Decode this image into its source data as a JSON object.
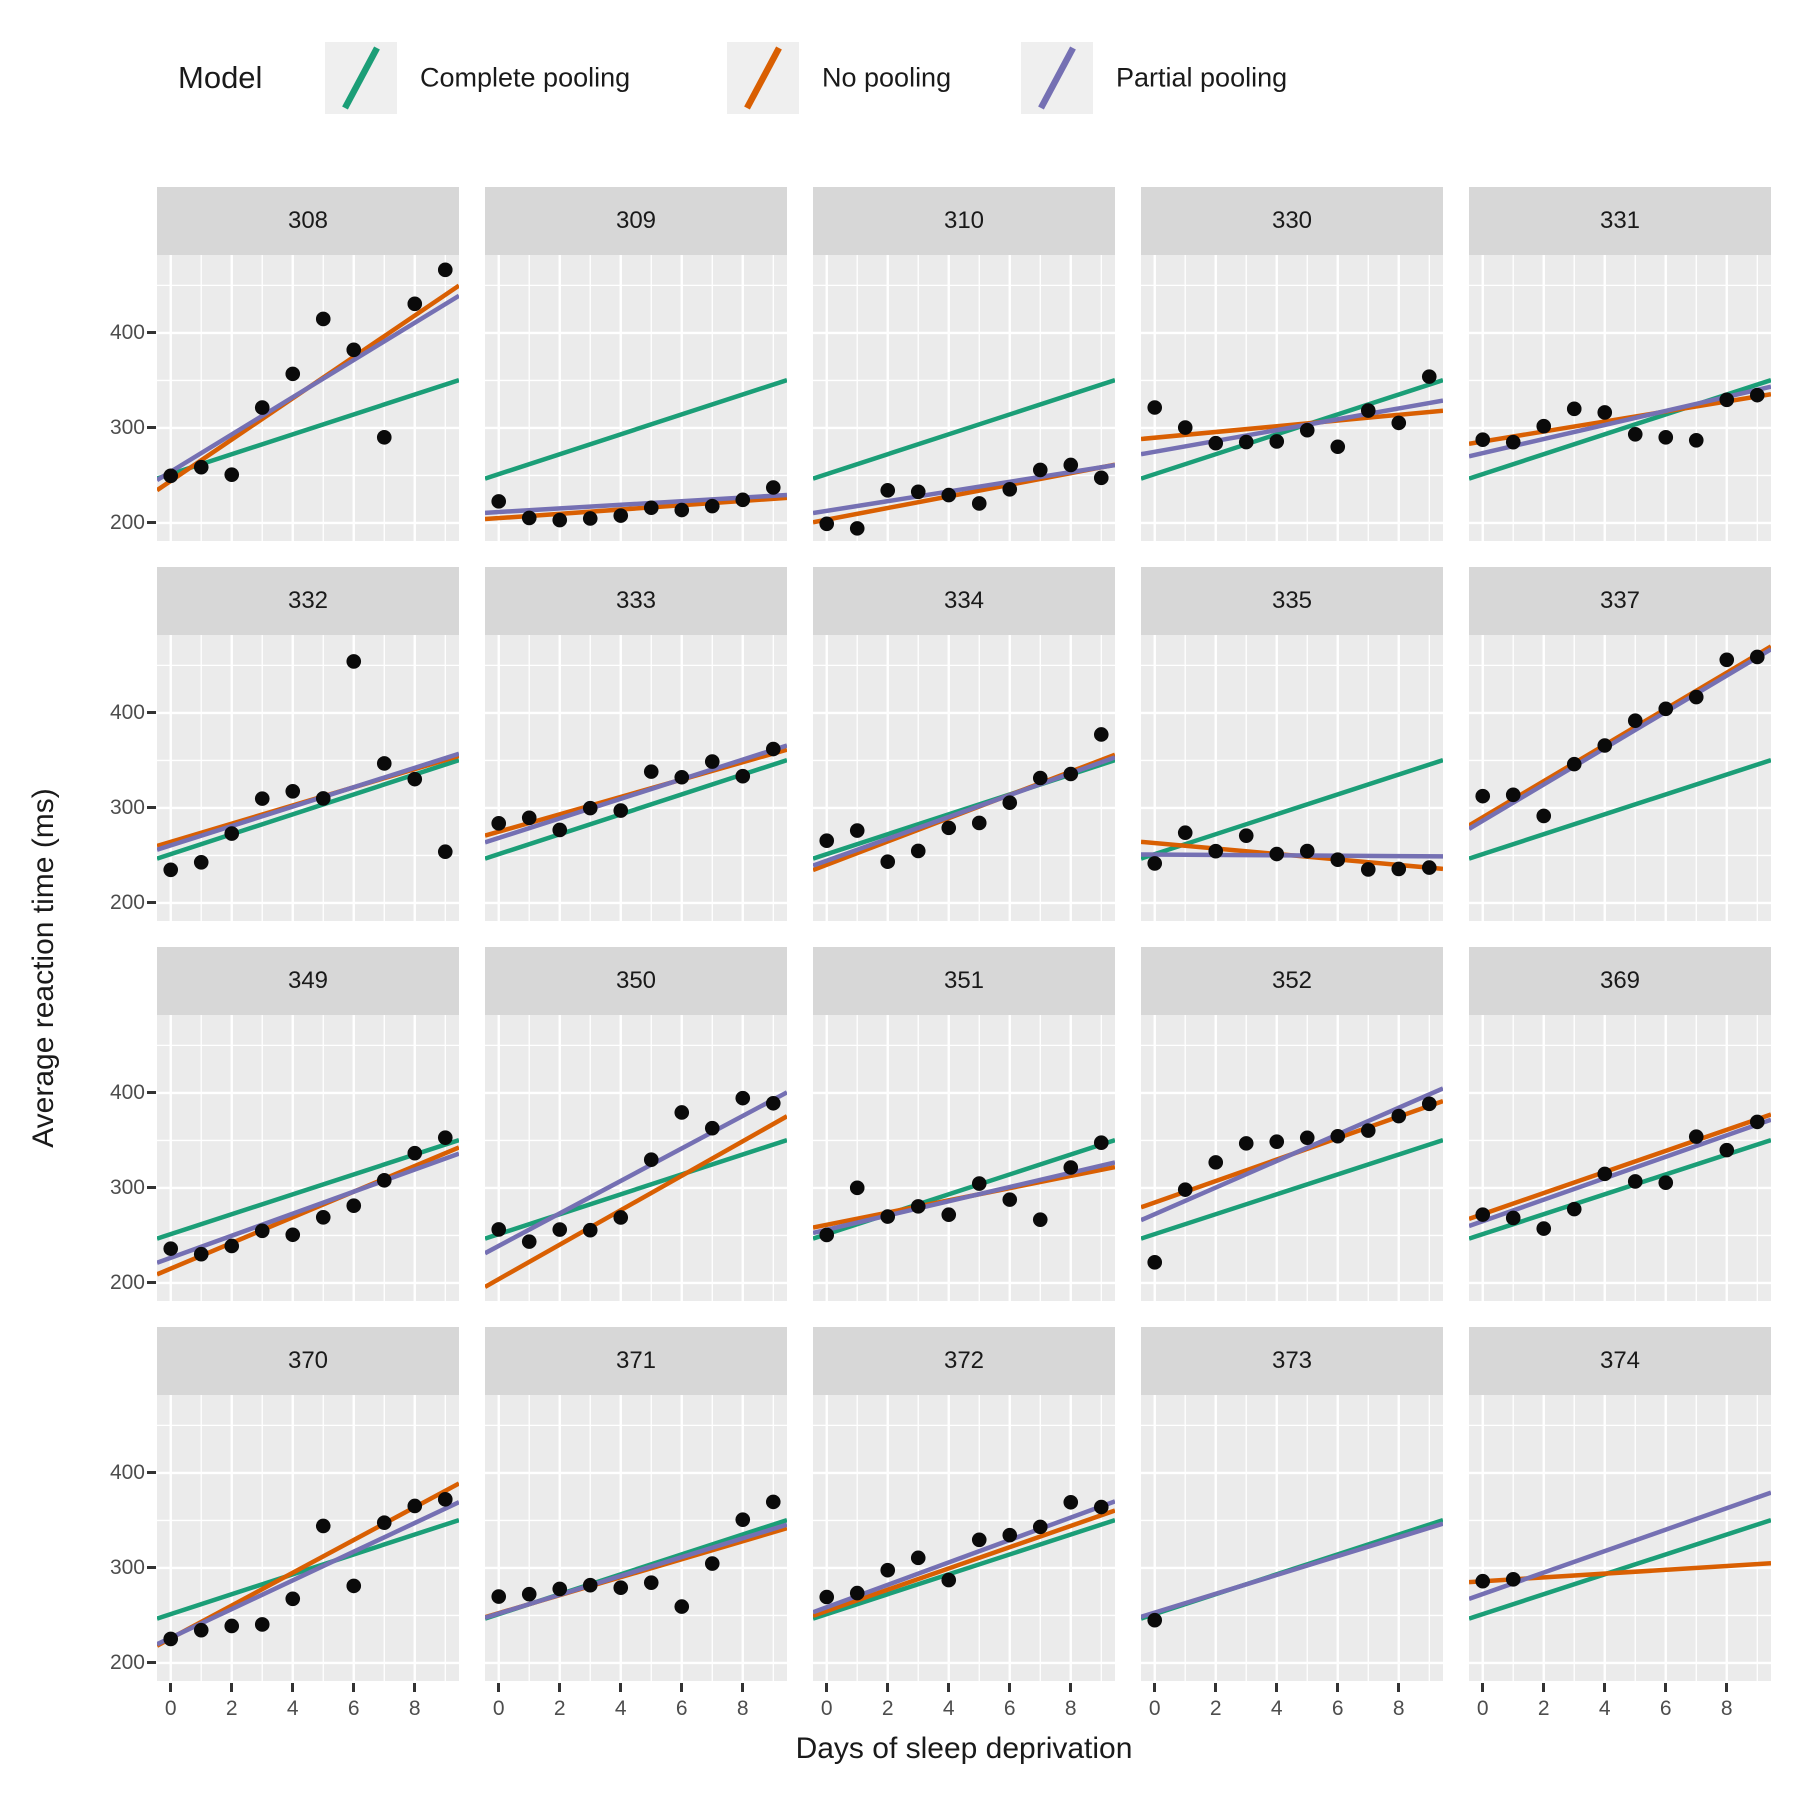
{
  "legend": {
    "title": "Model",
    "items": [
      {
        "key": "complete_pooling",
        "label": "Complete pooling",
        "color": "#1b9e77"
      },
      {
        "key": "no_pooling",
        "label": "No pooling",
        "color": "#d95f02"
      },
      {
        "key": "partial_pooling",
        "label": "Partial pooling",
        "color": "#7570b3"
      }
    ]
  },
  "axes": {
    "x_title": "Days of sleep deprivation",
    "y_title": "Average reaction time (ms)",
    "y_ticks": [
      400,
      300,
      200
    ],
    "y_minor": [
      450,
      350,
      250
    ],
    "x_ticks": [
      0,
      2,
      4,
      6,
      8
    ],
    "x_minor": [
      1,
      3,
      5,
      7,
      9
    ],
    "x_domain": [
      -0.45,
      9.45
    ],
    "y_domain": [
      181,
      482
    ]
  },
  "colors": {
    "panel_bg": "#ebebeb",
    "grid": "#ffffff",
    "strip_bg": "#d7d7d7",
    "point": "#0a0a0a",
    "tick_text": "#4d4d4d"
  },
  "chart_data": {
    "type": "scatter",
    "facet_by": "Subject",
    "x_variable": "Days of sleep deprivation",
    "y_variable": "Average reaction time (ms)",
    "line_draw_order": [
      "complete_pooling",
      "no_pooling",
      "partial_pooling"
    ],
    "facets": [
      {
        "label": "308",
        "points": [
          [
            0,
            249.6
          ],
          [
            1,
            258.7
          ],
          [
            2,
            250.8
          ],
          [
            3,
            321.4
          ],
          [
            4,
            356.9
          ],
          [
            5,
            414.7
          ],
          [
            6,
            382.2
          ],
          [
            7,
            290.1
          ],
          [
            8,
            430.6
          ],
          [
            9,
            466.4
          ]
        ],
        "lines": {
          "complete_pooling": {
            "intercept": 251.4,
            "slope": 10.47
          },
          "no_pooling": {
            "intercept": 244.2,
            "slope": 21.76
          },
          "partial_pooling": {
            "intercept": 253.9,
            "slope": 19.6
          }
        }
      },
      {
        "label": "309",
        "points": [
          [
            0,
            222.7
          ],
          [
            1,
            205.3
          ],
          [
            2,
            203.0
          ],
          [
            3,
            204.7
          ],
          [
            4,
            207.7
          ],
          [
            5,
            216.0
          ],
          [
            6,
            213.6
          ],
          [
            7,
            217.7
          ],
          [
            8,
            224.3
          ],
          [
            9,
            237.3
          ]
        ],
        "lines": {
          "complete_pooling": {
            "intercept": 251.4,
            "slope": 10.47
          },
          "no_pooling": {
            "intercept": 205.1,
            "slope": 2.26
          },
          "partial_pooling": {
            "intercept": 211.5,
            "slope": 1.9
          }
        }
      },
      {
        "label": "310",
        "points": [
          [
            0,
            199.1
          ],
          [
            1,
            194.3
          ],
          [
            2,
            234.3
          ],
          [
            3,
            232.8
          ],
          [
            4,
            229.3
          ],
          [
            5,
            220.5
          ],
          [
            6,
            235.4
          ],
          [
            7,
            255.8
          ],
          [
            8,
            261.0
          ],
          [
            9,
            247.5
          ]
        ],
        "lines": {
          "complete_pooling": {
            "intercept": 251.4,
            "slope": 10.47
          },
          "no_pooling": {
            "intercept": 203.5,
            "slope": 6.11
          },
          "partial_pooling": {
            "intercept": 212.7,
            "slope": 5.1
          }
        }
      },
      {
        "label": "330",
        "points": [
          [
            0,
            321.5
          ],
          [
            1,
            300.4
          ],
          [
            2,
            283.9
          ],
          [
            3,
            285.1
          ],
          [
            4,
            285.8
          ],
          [
            5,
            297.6
          ],
          [
            6,
            280.2
          ],
          [
            7,
            318.3
          ],
          [
            8,
            305.3
          ],
          [
            9,
            354.0
          ]
        ],
        "lines": {
          "complete_pooling": {
            "intercept": 251.4,
            "slope": 10.47
          },
          "no_pooling": {
            "intercept": 289.7,
            "slope": 3.01
          },
          "partial_pooling": {
            "intercept": 274.9,
            "slope": 5.7
          }
        }
      },
      {
        "label": "331",
        "points": [
          [
            0,
            287.6
          ],
          [
            1,
            285.0
          ],
          [
            2,
            301.8
          ],
          [
            3,
            320.1
          ],
          [
            4,
            316.3
          ],
          [
            5,
            293.3
          ],
          [
            6,
            290.1
          ],
          [
            7,
            287.0
          ],
          [
            8,
            329.6
          ],
          [
            9,
            334.5
          ]
        ],
        "lines": {
          "complete_pooling": {
            "intercept": 251.4,
            "slope": 10.47
          },
          "no_pooling": {
            "intercept": 285.7,
            "slope": 5.27
          },
          "partial_pooling": {
            "intercept": 273.5,
            "slope": 7.4
          }
        }
      },
      {
        "label": "332",
        "points": [
          [
            0,
            234.9
          ],
          [
            1,
            242.8
          ],
          [
            2,
            273.0
          ],
          [
            3,
            309.8
          ],
          [
            4,
            317.5
          ],
          [
            5,
            310.0
          ],
          [
            6,
            454.2
          ],
          [
            7,
            346.8
          ],
          [
            8,
            330.3
          ],
          [
            9,
            253.9
          ]
        ],
        "lines": {
          "complete_pooling": {
            "intercept": 251.4,
            "slope": 10.47
          },
          "no_pooling": {
            "intercept": 264.3,
            "slope": 9.57
          },
          "partial_pooling": {
            "intercept": 260.6,
            "slope": 10.2
          }
        }
      },
      {
        "label": "333",
        "points": [
          [
            0,
            283.8
          ],
          [
            1,
            289.6
          ],
          [
            2,
            276.8
          ],
          [
            3,
            299.8
          ],
          [
            4,
            297.2
          ],
          [
            5,
            338.2
          ],
          [
            6,
            332.3
          ],
          [
            7,
            348.8
          ],
          [
            8,
            333.4
          ],
          [
            9,
            362.0
          ]
        ],
        "lines": {
          "complete_pooling": {
            "intercept": 251.4,
            "slope": 10.47
          },
          "no_pooling": {
            "intercept": 275.0,
            "slope": 9.14
          },
          "partial_pooling": {
            "intercept": 268.4,
            "slope": 10.3
          }
        }
      },
      {
        "label": "334",
        "points": [
          [
            0,
            265.5
          ],
          [
            1,
            276.2
          ],
          [
            2,
            243.4
          ],
          [
            3,
            254.7
          ],
          [
            4,
            279.0
          ],
          [
            5,
            284.2
          ],
          [
            6,
            305.5
          ],
          [
            7,
            331.5
          ],
          [
            8,
            335.7
          ],
          [
            9,
            377.3
          ]
        ],
        "lines": {
          "complete_pooling": {
            "intercept": 251.4,
            "slope": 10.47
          },
          "no_pooling": {
            "intercept": 240.2,
            "slope": 12.25
          },
          "partial_pooling": {
            "intercept": 244.5,
            "slope": 11.5
          }
        }
      },
      {
        "label": "335",
        "points": [
          [
            0,
            241.6
          ],
          [
            1,
            273.9
          ],
          [
            2,
            254.5
          ],
          [
            3,
            270.8
          ],
          [
            4,
            251.5
          ],
          [
            5,
            254.6
          ],
          [
            6,
            245.5
          ],
          [
            7,
            235.3
          ],
          [
            8,
            235.8
          ],
          [
            9,
            237.2
          ]
        ],
        "lines": {
          "complete_pooling": {
            "intercept": 251.4,
            "slope": 10.47
          },
          "no_pooling": {
            "intercept": 263.0,
            "slope": -2.88
          },
          "partial_pooling": {
            "intercept": 250.9,
            "slope": -0.2
          }
        }
      },
      {
        "label": "337",
        "points": [
          [
            0,
            312.4
          ],
          [
            1,
            313.8
          ],
          [
            2,
            291.6
          ],
          [
            3,
            346.1
          ],
          [
            4,
            365.7
          ],
          [
            5,
            391.8
          ],
          [
            6,
            404.3
          ],
          [
            7,
            416.7
          ],
          [
            8,
            455.9
          ],
          [
            9,
            458.9
          ]
        ],
        "lines": {
          "complete_pooling": {
            "intercept": 251.4,
            "slope": 10.47
          },
          "no_pooling": {
            "intercept": 290.1,
            "slope": 19.03
          },
          "partial_pooling": {
            "intercept": 286.5,
            "slope": 19.1
          }
        }
      },
      {
        "label": "349",
        "points": [
          [
            0,
            236.1
          ],
          [
            1,
            230.3
          ],
          [
            2,
            238.9
          ],
          [
            3,
            254.9
          ],
          [
            4,
            250.7
          ],
          [
            5,
            269.1
          ],
          [
            6,
            281.3
          ],
          [
            7,
            308.0
          ],
          [
            8,
            336.6
          ],
          [
            9,
            352.9
          ]
        ],
        "lines": {
          "complete_pooling": {
            "intercept": 251.4,
            "slope": 10.47
          },
          "no_pooling": {
            "intercept": 215.1,
            "slope": 13.49
          },
          "partial_pooling": {
            "intercept": 226.5,
            "slope": 11.6
          }
        }
      },
      {
        "label": "350",
        "points": [
          [
            0,
            256.3
          ],
          [
            1,
            243.5
          ],
          [
            2,
            256.2
          ],
          [
            3,
            255.5
          ],
          [
            4,
            268.9
          ],
          [
            5,
            329.7
          ],
          [
            6,
            379.4
          ],
          [
            7,
            362.9
          ],
          [
            8,
            394.5
          ],
          [
            9,
            389.1
          ]
        ],
        "lines": {
          "complete_pooling": {
            "intercept": 251.4,
            "slope": 10.47
          },
          "no_pooling": {
            "intercept": 204.0,
            "slope": 18.14
          },
          "partial_pooling": {
            "intercept": 239.0,
            "slope": 17.1
          }
        }
      },
      {
        "label": "351",
        "points": [
          [
            0,
            250.5
          ],
          [
            1,
            300.1
          ],
          [
            2,
            269.9
          ],
          [
            3,
            280.6
          ],
          [
            4,
            271.8
          ],
          [
            5,
            304.6
          ],
          [
            6,
            287.7
          ],
          [
            7,
            266.6
          ],
          [
            8,
            321.5
          ],
          [
            9,
            347.6
          ]
        ],
        "lines": {
          "complete_pooling": {
            "intercept": 251.4,
            "slope": 10.47
          },
          "no_pooling": {
            "intercept": 261.2,
            "slope": 6.43
          },
          "partial_pooling": {
            "intercept": 256.0,
            "slope": 7.5
          }
        }
      },
      {
        "label": "352",
        "points": [
          [
            0,
            221.7
          ],
          [
            1,
            298.2
          ],
          [
            2,
            326.9
          ],
          [
            3,
            346.9
          ],
          [
            4,
            348.7
          ],
          [
            5,
            352.8
          ],
          [
            6,
            354.4
          ],
          [
            7,
            360.4
          ],
          [
            8,
            375.6
          ],
          [
            9,
            388.5
          ]
        ],
        "lines": {
          "complete_pooling": {
            "intercept": 251.4,
            "slope": 10.47
          },
          "no_pooling": {
            "intercept": 284.7,
            "slope": 11.29
          },
          "partial_pooling": {
            "intercept": 272.4,
            "slope": 14.0
          }
        }
      },
      {
        "label": "369",
        "points": [
          [
            0,
            271.9
          ],
          [
            1,
            268.4
          ],
          [
            2,
            257.2
          ],
          [
            3,
            277.7
          ],
          [
            4,
            314.8
          ],
          [
            5,
            306.8
          ],
          [
            6,
            305.5
          ],
          [
            7,
            354.0
          ],
          [
            8,
            339.8
          ],
          [
            9,
            369.5
          ]
        ],
        "lines": {
          "complete_pooling": {
            "intercept": 251.4,
            "slope": 10.47
          },
          "no_pooling": {
            "intercept": 272.4,
            "slope": 11.1
          },
          "partial_pooling": {
            "intercept": 265.0,
            "slope": 11.3
          }
        }
      },
      {
        "label": "370",
        "points": [
          [
            0,
            225.3
          ],
          [
            1,
            234.5
          ],
          [
            2,
            238.9
          ],
          [
            3,
            240.5
          ],
          [
            4,
            267.5
          ],
          [
            5,
            344.2
          ],
          [
            6,
            281.1
          ],
          [
            7,
            347.6
          ],
          [
            8,
            365.2
          ],
          [
            9,
            372.2
          ]
        ],
        "lines": {
          "complete_pooling": {
            "intercept": 251.4,
            "slope": 10.47
          },
          "no_pooling": {
            "intercept": 225.9,
            "slope": 17.25
          },
          "partial_pooling": {
            "intercept": 226.5,
            "slope": 15.1
          }
        }
      },
      {
        "label": "371",
        "points": [
          [
            0,
            269.9
          ],
          [
            1,
            272.4
          ],
          [
            2,
            277.9
          ],
          [
            3,
            281.8
          ],
          [
            4,
            279.2
          ],
          [
            5,
            284.5
          ],
          [
            6,
            259.3
          ],
          [
            7,
            304.6
          ],
          [
            8,
            350.8
          ],
          [
            9,
            369.5
          ]
        ],
        "lines": {
          "complete_pooling": {
            "intercept": 251.4,
            "slope": 10.47
          },
          "no_pooling": {
            "intercept": 252.4,
            "slope": 9.46
          },
          "partial_pooling": {
            "intercept": 252.0,
            "slope": 9.9
          }
        }
      },
      {
        "label": "372",
        "points": [
          [
            0,
            269.4
          ],
          [
            1,
            273.5
          ],
          [
            2,
            297.6
          ],
          [
            3,
            310.6
          ],
          [
            4,
            287.2
          ],
          [
            5,
            329.6
          ],
          [
            6,
            334.5
          ],
          [
            7,
            343.2
          ],
          [
            8,
            369.1
          ],
          [
            9,
            364.1
          ]
        ],
        "lines": {
          "complete_pooling": {
            "intercept": 251.4,
            "slope": 10.47
          },
          "no_pooling": {
            "intercept": 254.7,
            "slope": 11.19
          },
          "partial_pooling": {
            "intercept": 258.6,
            "slope": 11.8
          }
        }
      },
      {
        "label": "373",
        "points": [
          [
            0,
            245.0
          ]
        ],
        "lines": {
          "complete_pooling": {
            "intercept": 251.4,
            "slope": 10.47
          },
          "no_pooling": null,
          "partial_pooling": {
            "intercept": 253.0,
            "slope": 9.9
          }
        }
      },
      {
        "label": "374",
        "points": [
          [
            0,
            286.0
          ],
          [
            1,
            288.0
          ]
        ],
        "lines": {
          "complete_pooling": {
            "intercept": 251.4,
            "slope": 10.47
          },
          "no_pooling": {
            "intercept": 286.0,
            "slope": 2.0
          },
          "partial_pooling": {
            "intercept": 272.5,
            "slope": 11.3
          }
        }
      }
    ]
  }
}
